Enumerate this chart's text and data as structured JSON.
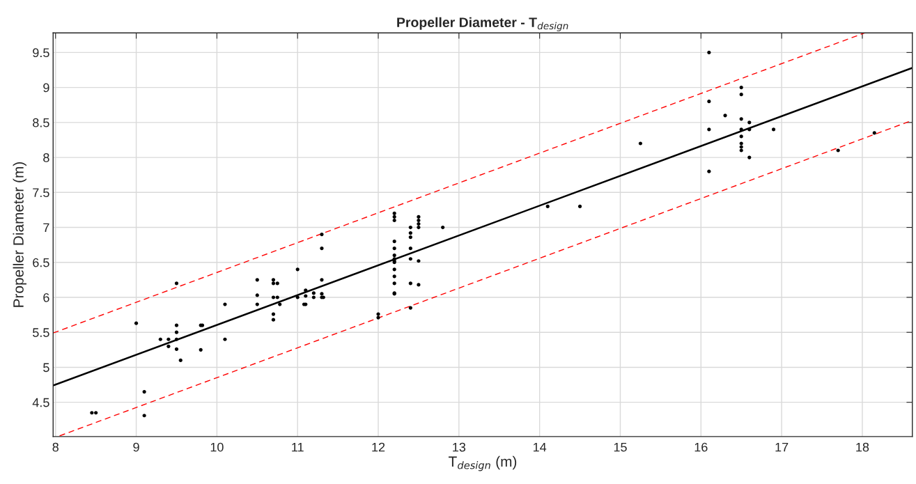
{
  "chart_data": {
    "type": "scatter",
    "title": "Propeller Diameter - T$_{design}$",
    "xlabel": "T$_{design}$ (m)",
    "ylabel": "Propeller Diameter (m)",
    "xlim": [
      7.97,
      18.62
    ],
    "ylim": [
      4.01,
      9.78
    ],
    "xticks": [
      8,
      9,
      10,
      11,
      12,
      13,
      14,
      15,
      16,
      17,
      18
    ],
    "yticks": [
      4.5,
      5,
      5.5,
      6,
      6.5,
      7,
      7.5,
      8,
      8.5,
      9,
      9.5
    ],
    "grid": true,
    "series": [
      {
        "marker": "circle",
        "color": "#000000",
        "x": [
          8.45,
          8.5,
          9.1,
          9.1,
          9.0,
          9.3,
          9.4,
          9.4,
          9.5,
          9.5,
          9.5,
          9.5,
          9.5,
          9.55,
          9.8,
          9.82,
          9.8,
          10.1,
          10.1,
          10.5,
          10.5,
          10.5,
          10.7,
          10.7,
          10.7,
          10.7,
          10.7,
          10.75,
          10.75,
          10.78,
          11.0,
          11.0,
          11.1,
          11.1,
          11.1,
          11.08,
          11.2,
          11.2,
          11.3,
          11.3,
          11.3,
          11.3,
          11.3,
          11.32,
          12.0,
          12.0,
          12.2,
          12.2,
          12.2,
          12.2,
          12.2,
          12.2,
          12.2,
          12.2,
          12.2,
          12.2,
          12.2,
          12.2,
          12.2,
          12.2,
          12.4,
          12.4,
          12.4,
          12.4,
          12.4,
          12.4,
          12.4,
          12.5,
          12.5,
          12.5,
          12.5,
          12.5,
          12.5,
          12.8,
          14.1,
          14.5,
          15.25,
          16.1,
          16.1,
          16.1,
          16.1,
          16.3,
          16.5,
          16.5,
          16.5,
          16.5,
          16.5,
          16.5,
          16.5,
          16.5,
          16.6,
          16.6,
          16.6,
          16.9,
          17.7,
          18.15
        ],
        "values": [
          4.35,
          4.35,
          4.65,
          4.31,
          5.63,
          5.4,
          5.4,
          5.3,
          6.2,
          5.6,
          5.5,
          5.4,
          5.26,
          5.1,
          5.6,
          5.6,
          5.25,
          5.9,
          5.4,
          6.25,
          6.03,
          5.9,
          6.25,
          6.2,
          6.0,
          5.76,
          5.68,
          6.2,
          6.0,
          5.9,
          6.4,
          6.0,
          6.1,
          6.02,
          5.9,
          5.9,
          6.06,
          6.0,
          6.9,
          6.7,
          6.25,
          6.05,
          6.0,
          6.0,
          5.76,
          5.71,
          7.2,
          7.15,
          7.1,
          6.8,
          6.7,
          6.6,
          6.55,
          6.52,
          6.5,
          6.4,
          6.3,
          6.2,
          6.06,
          6.05,
          7.0,
          6.92,
          6.86,
          6.7,
          6.55,
          6.2,
          5.85,
          7.15,
          7.1,
          7.05,
          7.0,
          6.52,
          6.18,
          7.0,
          7.3,
          7.3,
          8.2,
          9.5,
          8.8,
          8.4,
          7.8,
          8.6,
          9.0,
          8.9,
          8.55,
          8.4,
          8.3,
          8.2,
          8.15,
          8.1,
          8.5,
          8.4,
          8.0,
          8.4,
          8.1,
          8.35
        ]
      },
      {
        "type": "line",
        "color": "#000000",
        "line_style": "solid",
        "x": [
          7.97,
          18.62
        ],
        "values": [
          4.74,
          9.28
        ]
      },
      {
        "type": "line",
        "color": "#ff0000",
        "line_style": "dashed",
        "x": [
          7.97,
          18.03
        ],
        "values": [
          5.49,
          9.78
        ]
      },
      {
        "type": "line",
        "color": "#ff0000",
        "line_style": "dashed",
        "x": [
          8.05,
          18.62
        ],
        "values": [
          4.02,
          8.53
        ]
      }
    ]
  }
}
